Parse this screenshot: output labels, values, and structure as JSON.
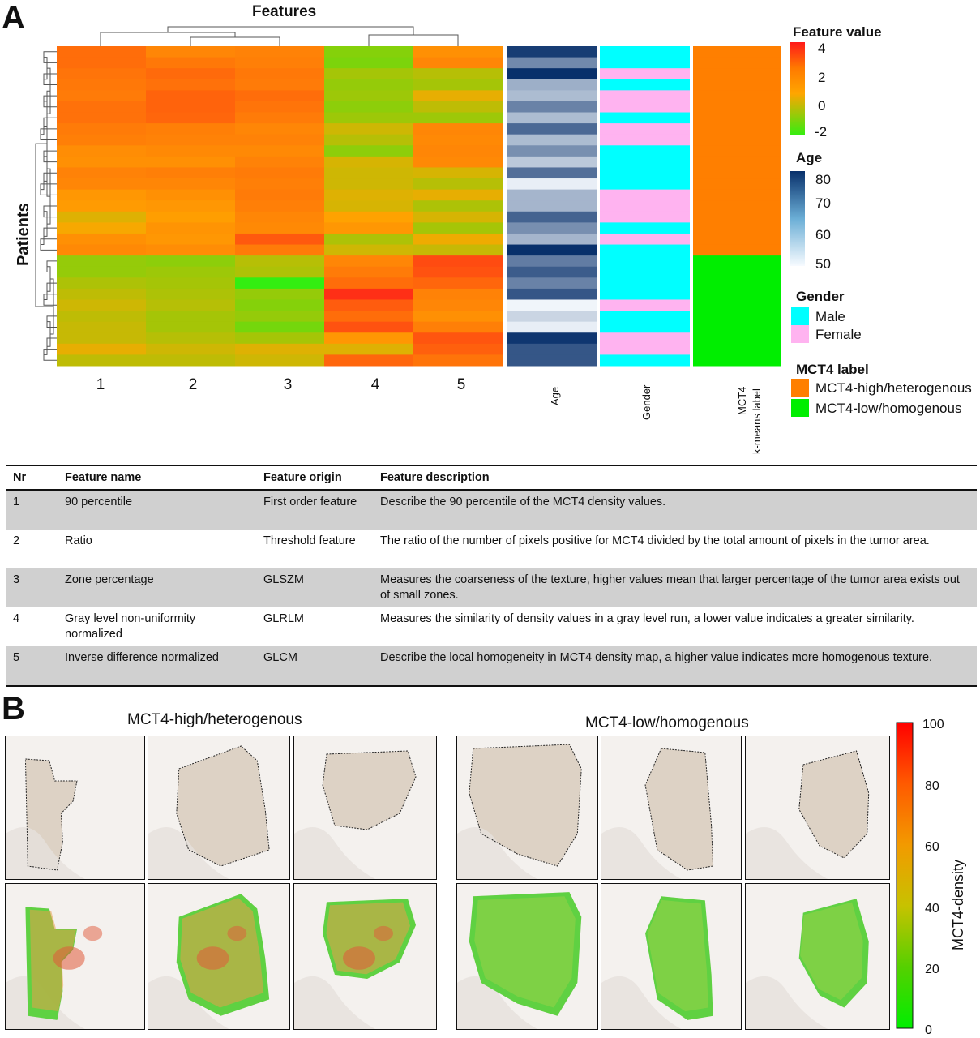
{
  "panel_a": {
    "letter": "A",
    "features_title": "Features",
    "patients_label": "Patients",
    "feature_columns": [
      "1",
      "2",
      "3",
      "4",
      "5"
    ],
    "annotation_columns": {
      "age": "Age",
      "gender": "Gender",
      "mct4_line1": "MCT4",
      "mct4_line2": "k-means label"
    },
    "legend": {
      "feature_value_title": "Feature value",
      "feature_value_ticks": [
        "4",
        "2",
        "0",
        "-2"
      ],
      "age_title": "Age",
      "age_ticks": [
        "80",
        "70",
        "60",
        "50"
      ],
      "gender_title": "Gender",
      "gender_items": [
        {
          "label": "Male",
          "color": "#00ffff"
        },
        {
          "label": "Female",
          "color": "#ffb3f0"
        }
      ],
      "mct4_title": "MCT4 label",
      "mct4_items": [
        {
          "label": "MCT4-high/heterogenous",
          "color": "#ff7f00"
        },
        {
          "label": "MCT4-low/homogenous",
          "color": "#00ee00"
        }
      ]
    },
    "colors": {
      "feature_low": "#33ee11",
      "feature_mid": "#ffa500",
      "feature_high": "#ff1a1a",
      "age_low": "#f7fbff",
      "age_high": "#08306b",
      "mct4_high": "#ff7f00",
      "mct4_low": "#00ee00"
    },
    "heatmap_values": [
      [
        1.6,
        0.9,
        1.0,
        -1.5,
        0.6
      ],
      [
        1.6,
        1.3,
        1.1,
        -1.6,
        0.9
      ],
      [
        1.4,
        1.7,
        1.3,
        -1.1,
        -0.9
      ],
      [
        1.3,
        1.5,
        1.2,
        -1.3,
        -1.1
      ],
      [
        1.2,
        1.9,
        1.6,
        -1.2,
        -0.3
      ],
      [
        1.5,
        1.9,
        1.4,
        -1.4,
        -0.8
      ],
      [
        1.5,
        1.8,
        1.2,
        -1.2,
        -1.2
      ],
      [
        1.2,
        1.1,
        0.9,
        -0.6,
        0.9
      ],
      [
        1.1,
        1.0,
        1.0,
        -0.9,
        0.8
      ],
      [
        0.7,
        0.8,
        0.8,
        -1.4,
        0.9
      ],
      [
        0.6,
        0.6,
        1.0,
        -0.5,
        0.8
      ],
      [
        1.0,
        1.1,
        1.2,
        -0.6,
        -0.5
      ],
      [
        0.9,
        0.9,
        1.1,
        -0.6,
        -0.9
      ],
      [
        0.4,
        0.6,
        1.2,
        -0.4,
        -0.3
      ],
      [
        0.3,
        0.4,
        1.1,
        -0.5,
        -1.0
      ],
      [
        -0.4,
        0.2,
        0.9,
        0.1,
        -0.5
      ],
      [
        -0.1,
        0.5,
        0.8,
        0.4,
        -1.1
      ],
      [
        0.6,
        0.4,
        2.2,
        -1.0,
        -0.2
      ],
      [
        0.8,
        0.7,
        1.2,
        -0.6,
        -0.7
      ],
      [
        -1.3,
        -1.4,
        -0.9,
        0.9,
        2.6
      ],
      [
        -1.3,
        -1.2,
        -1.0,
        1.2,
        2.4
      ],
      [
        -1.0,
        -1.1,
        -2.6,
        1.6,
        1.8
      ],
      [
        -0.8,
        -1.0,
        -1.3,
        3.4,
        1.0
      ],
      [
        -0.6,
        -0.9,
        -1.5,
        2.1,
        0.9
      ],
      [
        -0.8,
        -1.1,
        -1.3,
        1.6,
        0.6
      ],
      [
        -0.7,
        -1.1,
        -1.7,
        2.4,
        1.1
      ],
      [
        -0.7,
        -0.9,
        -1.1,
        0.4,
        2.3
      ],
      [
        -0.3,
        -0.6,
        -0.4,
        -0.4,
        2.0
      ],
      [
        -0.8,
        -0.8,
        -0.6,
        1.8,
        1.4
      ]
    ],
    "age_values": [
      80,
      68,
      82,
      62,
      60,
      69,
      60,
      73,
      60,
      67,
      58,
      72,
      52,
      61,
      61,
      74,
      67,
      61,
      82,
      70,
      75,
      69,
      76,
      51,
      56,
      52,
      81,
      76,
      76
    ],
    "gender_values": [
      "M",
      "M",
      "F",
      "M",
      "F",
      "F",
      "M",
      "F",
      "F",
      "M",
      "M",
      "M",
      "M",
      "F",
      "F",
      "F",
      "M",
      "F",
      "M",
      "M",
      "M",
      "M",
      "M",
      "F",
      "M",
      "M",
      "F",
      "F",
      "M"
    ],
    "mct4_values": [
      "H",
      "H",
      "H",
      "H",
      "H",
      "H",
      "H",
      "H",
      "H",
      "H",
      "H",
      "H",
      "H",
      "H",
      "H",
      "H",
      "H",
      "H",
      "H",
      "L",
      "L",
      "L",
      "L",
      "L",
      "L",
      "L",
      "L",
      "L",
      "L"
    ]
  },
  "table": {
    "headers": {
      "nr": "Nr",
      "name": "Feature name",
      "origin": "Feature origin",
      "description": "Feature description"
    },
    "rows": [
      {
        "nr": "1",
        "name": "90 percentile",
        "origin": "First order feature",
        "description": "Describe the 90 percentile of the MCT4 density values."
      },
      {
        "nr": "2",
        "name": "Ratio",
        "origin": "Threshold feature",
        "description": "The ratio of the number of pixels positive for MCT4 divided by the total amount of pixels in the tumor area."
      },
      {
        "nr": "3",
        "name": "Zone percentage",
        "origin": "GLSZM",
        "description": "Measures the coarseness of the texture, higher values mean that larger percentage of the tumor area exists out of small zones."
      },
      {
        "nr": "4",
        "name": "Gray level non-uniformity normalized",
        "origin": "GLRLM",
        "description": "Measures the similarity of density values in a gray level run, a lower value indicates a greater similarity."
      },
      {
        "nr": "5",
        "name": "Inverse difference normalized",
        "origin": "GLCM",
        "description": "Describe the local homogeneity in MCT4 density map, a higher value indicates more homogenous texture."
      }
    ]
  },
  "panel_b": {
    "letter": "B",
    "title_high": "MCT4-high/heterogenous",
    "title_low": "MCT4-low/homogenous",
    "colorbar_label": "MCT4-density",
    "colorbar_ticks": [
      "100",
      "80",
      "60",
      "40",
      "20",
      "0"
    ],
    "colorbar_colors": [
      "#ff0000",
      "#ff7a00",
      "#f5b000",
      "#c7c200",
      "#55d000",
      "#00ee00"
    ]
  }
}
